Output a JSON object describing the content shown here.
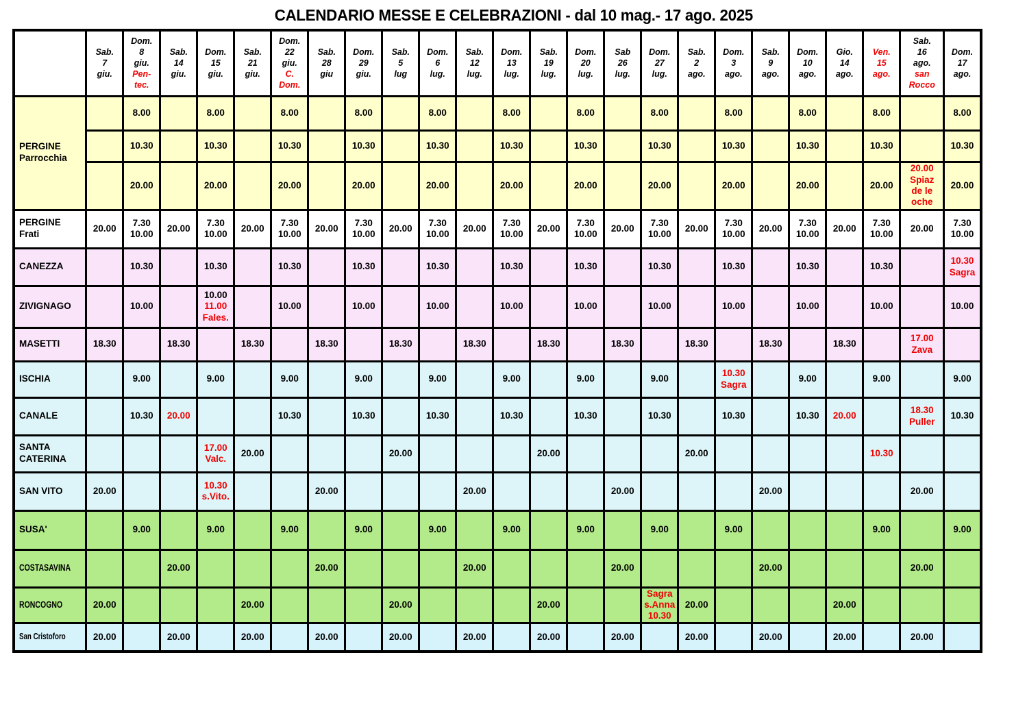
{
  "title": "CALENDARIO MESSE E CELEBRAZIONI - dal 10 mag.- 17 ago. 2025",
  "colors": {
    "red": "#EE0000",
    "black": "#000000",
    "border": "#000000",
    "yellow": "#FFFFCC",
    "white": "#FFFFFF",
    "pink": "#FAE4FA",
    "cyan": "#DDF5F8",
    "green": "#B3EB8A",
    "blue": "#D6F2FB"
  },
  "columns": [
    {
      "black": "Sab.\n7\ngiu."
    },
    {
      "black": "Dom.\n8\ngiu.",
      "red": "Pen-\ntec."
    },
    {
      "black": "Sab.\n14\ngiu."
    },
    {
      "black": "Dom.\n15\ngiu."
    },
    {
      "black": "Sab.\n21\ngiu."
    },
    {
      "black": "Dom.\n22\ngiu.",
      "red": "C.\nDom."
    },
    {
      "black": "Sab.\n28\ngiu"
    },
    {
      "black": "Dom.\n29\ngiu."
    },
    {
      "black": "Sab.\n5\nlug"
    },
    {
      "black": "Dom.\n6\nlug."
    },
    {
      "black": "Sab.\n12\nlug."
    },
    {
      "black": "Dom.\n13\nlug."
    },
    {
      "black": "Sab.\n19\nlug."
    },
    {
      "black": "Dom.\n20\nlug."
    },
    {
      "black": "Sab\n26\nlug."
    },
    {
      "black": "Dom.\n27\nlug."
    },
    {
      "black": "Sab.\n2\nago."
    },
    {
      "black": "Dom.\n3\nago."
    },
    {
      "black": "Sab.\n9\nago."
    },
    {
      "black": "Dom.\n10\nago."
    },
    {
      "black": "Gio.\n14\nago."
    },
    {
      "red": "Ven.\n15\nago."
    },
    {
      "black": "Sab.\n16\nago.",
      "red": "san\nRocco"
    },
    {
      "black": "Dom.\n17\nago."
    }
  ],
  "rows": [
    {
      "label": "PERGINE\nParrocchia",
      "rowspan": 3,
      "bg": "yellow",
      "cells": [
        "",
        "8.00",
        "",
        "8.00",
        "",
        "8.00",
        "",
        "8.00",
        "",
        "8.00",
        "",
        "8.00",
        "",
        "8.00",
        "",
        "8.00",
        "",
        "8.00",
        "",
        "8.00",
        "",
        "8.00",
        "",
        "8.00"
      ]
    },
    {
      "bg": "yellow",
      "cells": [
        "",
        "10.30",
        "",
        "10.30",
        "",
        "10.30",
        "",
        "10.30",
        "",
        "10.30",
        "",
        "10.30",
        "",
        "10.30",
        "",
        "10.30",
        "",
        "10.30",
        "",
        "10.30",
        "",
        "10.30",
        "",
        "10.30"
      ]
    },
    {
      "bg": "yellow",
      "cells": [
        "",
        "20.00",
        "",
        "20.00",
        "",
        "20.00",
        "",
        "20.00",
        "",
        "20.00",
        "",
        "20.00",
        "",
        "20.00",
        "",
        "20.00",
        "",
        "20.00",
        "",
        "20.00",
        "",
        "20.00",
        {
          "red": "20.00\nSpiaz\nde le\noche"
        },
        "20.00"
      ]
    },
    {
      "label": "PERGINE\nFrati",
      "bg": "white",
      "cells": [
        "20.00",
        "7.30\n10.00",
        "20.00",
        "7.30\n10.00",
        "20.00",
        "7.30\n10.00",
        "20.00",
        "7.30\n10.00",
        "20.00",
        "7.30\n10.00",
        "20.00",
        "7.30\n10.00",
        "20.00",
        "7.30\n10.00",
        "20.00",
        "7.30\n10.00",
        "20.00",
        "7.30\n10.00",
        "20.00",
        "7.30\n10.00",
        "20.00",
        "7.30\n10.00",
        "20.00",
        "7.30\n10.00"
      ]
    },
    {
      "label": "CANEZZA",
      "bg": "pink",
      "cells": [
        "",
        "10.30",
        "",
        "10.30",
        "",
        "10.30",
        "",
        "10.30",
        "",
        "10.30",
        "",
        "10.30",
        "",
        "10.30",
        "",
        "10.30",
        "",
        "10.30",
        "",
        "10.30",
        "",
        "10.30",
        "",
        {
          "red": "10.30\nSagra"
        }
      ]
    },
    {
      "label": "ZIVIGNAGO",
      "bg": "pink",
      "cells": [
        "",
        "10.00",
        "",
        {
          "black": "10.00",
          "red": "11.00\nFales."
        },
        "",
        "10.00",
        "",
        "10.00",
        "",
        "10.00",
        "",
        "10.00",
        "",
        "10.00",
        "",
        "10.00",
        "",
        "10.00",
        "",
        "10.00",
        "",
        "10.00",
        "",
        "10.00"
      ]
    },
    {
      "label": "MASETTI",
      "bg": "pink",
      "cells": [
        "18.30",
        "",
        "18.30",
        "",
        "18.30",
        "",
        "18.30",
        "",
        "18.30",
        "",
        "18.30",
        "",
        "18.30",
        "",
        "18.30",
        "",
        "18.30",
        "",
        "18.30",
        "",
        "18.30",
        "",
        {
          "red": "17.00\nZava"
        },
        ""
      ]
    },
    {
      "label": "ISCHIA",
      "bg": "cyan",
      "cells": [
        "",
        "9.00",
        "",
        "9.00",
        "",
        "9.00",
        "",
        "9.00",
        "",
        "9.00",
        "",
        "9.00",
        "",
        "9.00",
        "",
        "9.00",
        "",
        {
          "red": "10.30\nSagra"
        },
        "",
        "9.00",
        "",
        "9.00",
        "",
        "9.00"
      ]
    },
    {
      "label": "CANALE",
      "bg": "cyan",
      "cells": [
        "",
        "10.30",
        {
          "red": "20.00"
        },
        "",
        "",
        "10.30",
        "",
        "10.30",
        "",
        "10.30",
        "",
        "10.30",
        "",
        "10.30",
        "",
        "10.30",
        "",
        "10.30",
        "",
        "10.30",
        {
          "red": "20.00"
        },
        "",
        {
          "red": "18.30\nPuller"
        },
        "10.30"
      ]
    },
    {
      "label": "SANTA\nCATERINA",
      "bg": "cyan",
      "cells": [
        "",
        "",
        "",
        {
          "red": "17.00\nValc."
        },
        "20.00",
        "",
        "",
        "",
        "20.00",
        "",
        "",
        "",
        "20.00",
        "",
        "",
        "",
        "20.00",
        "",
        "",
        "",
        "",
        {
          "red": "10.30"
        },
        "",
        ""
      ]
    },
    {
      "label": "SAN VITO",
      "bg": "cyan",
      "cells": [
        "20.00",
        "",
        "",
        {
          "red": "10.30\ns.Vito."
        },
        "",
        "",
        "20.00",
        "",
        "",
        "",
        "20.00",
        "",
        "",
        "",
        "20.00",
        "",
        "",
        "",
        "20.00",
        "",
        "",
        "",
        "20.00",
        ""
      ]
    },
    {
      "label": "SUSA'",
      "bg": "green",
      "cells": [
        "",
        "9.00",
        "",
        "9.00",
        "",
        "9.00",
        "",
        "9.00",
        "",
        "9.00",
        "",
        "9.00",
        "",
        "9.00",
        "",
        "9.00",
        "",
        "9.00",
        "",
        "",
        "",
        "9.00",
        "",
        "9.00"
      ]
    },
    {
      "label": "COSTASAVINA",
      "bg": "green",
      "narrow": true,
      "cells": [
        "",
        "",
        "20.00",
        "",
        "",
        "",
        "20.00",
        "",
        "",
        "",
        "20.00",
        "",
        "",
        "",
        "20.00",
        "",
        "",
        "",
        "20.00",
        "",
        "",
        "",
        "20.00",
        ""
      ]
    },
    {
      "label": "RONCOGNO",
      "bg": "green",
      "narrow": true,
      "cells": [
        "20.00",
        "",
        "",
        "",
        "20.00",
        "",
        "",
        "",
        "20.00",
        "",
        "",
        "",
        "20.00",
        "",
        "",
        {
          "red": "Sagra\ns.Anna\n10.30"
        },
        "20.00",
        "",
        "",
        "",
        "20.00",
        "",
        "",
        ""
      ]
    },
    {
      "label": "San Cristoforo",
      "bg": "blue",
      "narrow": true,
      "small": true,
      "cells": [
        "20.00",
        "",
        "20.00",
        "",
        "20.00",
        "",
        "20.00",
        "",
        "20.00",
        "",
        "20.00",
        "",
        "20.00",
        "",
        "20.00",
        "",
        "20.00",
        "",
        "20.00",
        "",
        "20.00",
        "",
        "20.00",
        ""
      ]
    }
  ]
}
